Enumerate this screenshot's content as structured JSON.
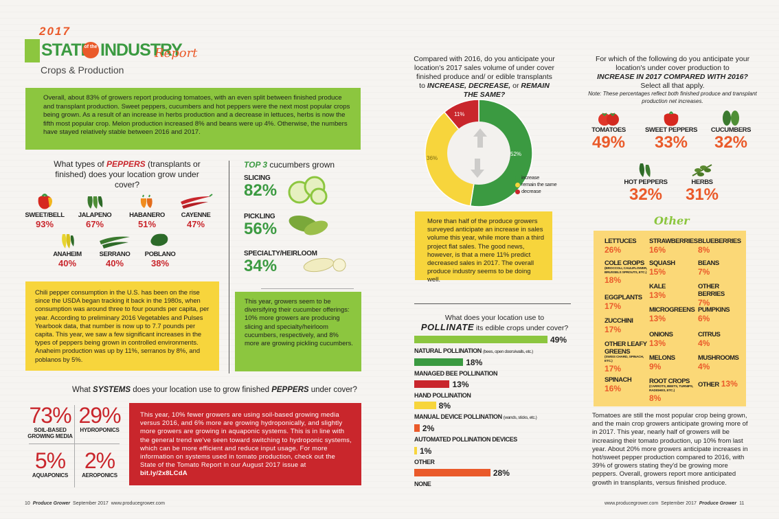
{
  "header": {
    "year": "2017",
    "state": "STATE",
    "of_the": "of the",
    "industry": "INDUSTRY",
    "report": "Report",
    "subtitle": "Crops & Production"
  },
  "intro": "Overall, about 83% of growers report producing tomatoes, with an even split between finished produce and transplant production. Sweet peppers, cucumbers and hot peppers were the next most popular crops being grown. As a result of an increase in herbs production and a decrease in lettuces, herbs is now the fifth most popular crop. Melon production increased 8% and beans were up 4%. Otherwise, the numbers have stayed relatively stable between 2016 and 2017.",
  "peppers": {
    "question_pre": "What types of ",
    "question_em": "PEPPERS",
    "question_post": " (transplants or finished) does your location grow under cover?",
    "items": [
      {
        "name": "SWEET/BELL",
        "pct": "93%",
        "icon": "bell-pepper-icon"
      },
      {
        "name": "JALAPENO",
        "pct": "67%",
        "icon": "jalapeno-icon"
      },
      {
        "name": "HABANERO",
        "pct": "51%",
        "icon": "habanero-icon"
      },
      {
        "name": "CAYENNE",
        "pct": "47%",
        "icon": "cayenne-icon"
      },
      {
        "name": "ANAHEIM",
        "pct": "40%",
        "icon": "anaheim-icon"
      },
      {
        "name": "SERRANO",
        "pct": "40%",
        "icon": "serrano-icon"
      },
      {
        "name": "POBLANO",
        "pct": "38%",
        "icon": "poblano-icon"
      }
    ],
    "chili_text": "Chili pepper consumption in the U.S. has been on the rise since the USDA began tracking it back in the 1980s, when consumption was around three to four pounds per capita, per year. According to preliminary 2016 Vegetables and Pulses Yearbook data, that number is now up to 7.7 pounds per capita. This year, we saw a few significant increases in the types of peppers being grown in controlled environments. Anaheim production was up by 11%, serranos by 8%, and poblanos by 5%."
  },
  "cucumbers": {
    "title_em": "TOP 3",
    "title_post": " cucumbers grown",
    "items": [
      {
        "name": "SLICING",
        "pct": "82%"
      },
      {
        "name": "PICKLING",
        "pct": "56%"
      },
      {
        "name": "SPECIALTY/HEIRLOOM",
        "pct": "34%"
      }
    ],
    "text": "This year, growers seem to be diversifying their cucumber offerings: 10% more growers are producing slicing and specialty/heirloom cucumbers, respectively, and 8% more are growing pickling cucumbers."
  },
  "systems": {
    "question_pre": "What ",
    "question_em1": "SYSTEMS",
    "question_mid": " does your location use to grow finished ",
    "question_em2": "PEPPERS",
    "question_post": " under cover?",
    "items": [
      {
        "pct": "73%",
        "name": "SOIL-BASED GROWING MEDIA"
      },
      {
        "pct": "29%",
        "name": "HYDROPONICS"
      },
      {
        "pct": "5%",
        "name": "AQUAPONICS"
      },
      {
        "pct": "2%",
        "name": "AEROPONICS"
      }
    ],
    "text": "This year, 10% fewer growers are using soil-based growing media versus 2016, and 6% more are growing hydroponically, and slightly more growers are growing in aquaponic systems. This is in line with the general trend we've seen toward switching to hydroponic systems, which can be more efficient and reduce input usage. For more information on systems used in tomato production, check out the State of the Tomato Report in our August 2017 issue at ",
    "link": "bit.ly/2x8LCdA"
  },
  "sales": {
    "question": "Compared with 2016, do you anticipate your location's 2017 sales volume of under cover finished produce and/ or edible transplants to",
    "question_em": "INCREASE, DECREASE,",
    "question_mid": " or ",
    "question_em2": "REMAIN THE SAME?",
    "legend": [
      {
        "label": "increase",
        "color": "#3b9a41"
      },
      {
        "label": "remain the same",
        "color": "#f7d53c"
      },
      {
        "label": "decrease",
        "color": "#c9262c"
      }
    ],
    "labels": {
      "increase": "52%",
      "same": "36%",
      "decrease": "11%"
    },
    "text": "More than half of the produce growers surveyed anticipate an increase in sales volume this year, while more than a third project flat sales. The good news, however, is that a mere 11% predict decreased sales in 2017. The overall produce industry seems to be doing well."
  },
  "pollination": {
    "question": "What does your location use to",
    "question_em": "POLLINATE",
    "question_post": " its edible crops under cover?",
    "items": [
      {
        "label": "NATURAL POLLINATION",
        "detail": "(bees, open doors/walls, etc.)",
        "pct": "49%",
        "color": "#8cc63f"
      },
      {
        "label": "MANAGED BEE POLLINATION",
        "detail": "",
        "pct": "18%",
        "color": "#3b9a41"
      },
      {
        "label": "HAND POLLINATION",
        "detail": "",
        "pct": "13%",
        "color": "#c9262c"
      },
      {
        "label": "MANUAL DEVICE POLLINATION",
        "detail": "(wands, sticks, etc.)",
        "pct": "8%",
        "color": "#f7d53c"
      },
      {
        "label": "AUTOMATED POLLINATION DEVICES",
        "detail": "",
        "pct": "2%",
        "color": "#ea5a2a"
      },
      {
        "label": "OTHER",
        "detail": "",
        "pct": "1%",
        "color": "#f7d53c"
      },
      {
        "label": "NONE",
        "detail": "",
        "pct": "28%",
        "color": "#ea5a2a"
      }
    ]
  },
  "increase": {
    "question": "For which of the following do you anticipate your location's under cover production to",
    "question_em": "INCREASE IN 2017 COMPARED WITH 2016?",
    "question_post": "Select all that apply.",
    "note": "Note: These percentages reflect both finished produce and transplant production net increases.",
    "top": [
      {
        "name": "TOMATOES",
        "pct": "49%",
        "icon": "tomato-icon"
      },
      {
        "name": "SWEET PEPPERS",
        "pct": "33%",
        "icon": "sweet-pepper-icon"
      },
      {
        "name": "CUCUMBERS",
        "pct": "32%",
        "icon": "cucumber-icon"
      },
      {
        "name": "HOT PEPPERS",
        "pct": "32%",
        "icon": "hot-pepper-icon"
      },
      {
        "name": "HERBS",
        "pct": "31%",
        "icon": "herbs-icon"
      }
    ],
    "other_title": "Other",
    "other": [
      {
        "name": "LETTUCES",
        "sub": "",
        "pct": "26%"
      },
      {
        "name": "COLE CROPS",
        "sub": "(BROCCOLI, CAULIFLOWER, BRUSSELS SPROUTS, ETC.)",
        "pct": "18%"
      },
      {
        "name": "EGGPLANTS",
        "sub": "",
        "pct": "17%"
      },
      {
        "name": "ZUCCHINI",
        "sub": "",
        "pct": "17%"
      },
      {
        "name": "OTHER LEAFY GREENS",
        "sub": "(SWISS CHARD, SPINACH, ETC.)",
        "pct": "17%"
      },
      {
        "name": "SPINACH",
        "sub": "",
        "pct": "16%"
      },
      {
        "name": "STRAWBERRIES",
        "sub": "",
        "pct": "16%"
      },
      {
        "name": "SQUASH",
        "sub": "",
        "pct": "15%"
      },
      {
        "name": "KALE",
        "sub": "",
        "pct": "13%"
      },
      {
        "name": "MICROGREENS",
        "sub": "",
        "pct": "13%"
      },
      {
        "name": "ONIONS",
        "sub": "",
        "pct": "13%"
      },
      {
        "name": "MELONS",
        "sub": "",
        "pct": "9%"
      },
      {
        "name": "ROOT CROPS",
        "sub": "(CARROTS, BEETS, TURNIPS, RADISHES, ETC.)",
        "pct": "8%"
      },
      {
        "name": "BLUEBERRIES",
        "sub": "",
        "pct": "8%"
      },
      {
        "name": "BEANS",
        "sub": "",
        "pct": "7%"
      },
      {
        "name": "OTHER BERRIES",
        "sub": "",
        "pct": "7%"
      },
      {
        "name": "PUMPKINS",
        "sub": "",
        "pct": "6%"
      },
      {
        "name": "CITRUS",
        "sub": "",
        "pct": "4%"
      },
      {
        "name": "MUSHROOMS",
        "sub": "",
        "pct": "4%"
      },
      {
        "name": "OTHER",
        "sub": "",
        "pct": "13%"
      }
    ],
    "text": "Tomatoes are still the most popular crop being grown, and the main crop growers anticipate growing more of in 2017. This year, nearly half of growers will be increasing their tomato production, up 10% from last year. About 20% more growers anticipate increases in hot/sweet pepper production compared to 2016, with 39% of growers stating they'd be growing more peppers. Overall, growers report more anticipated growth in transplants, versus finished produce."
  },
  "footer": {
    "left_page": "10",
    "left_brand": "Produce Grower",
    "left_date": "September 2017",
    "left_url": "www.producegrower.com",
    "right_url": "www.producegrower.com",
    "right_date": "September 2017",
    "right_brand": "Produce Grower",
    "right_page": "11"
  },
  "chart_data": {
    "type": "pie",
    "title": "",
    "categories": [
      "increase",
      "remain the same",
      "decrease"
    ],
    "values": [
      52,
      36,
      11
    ],
    "legend": "right"
  }
}
